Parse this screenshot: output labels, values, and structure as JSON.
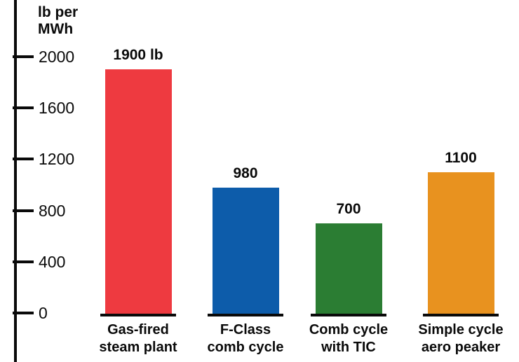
{
  "chart_data": {
    "type": "bar",
    "title": "",
    "ylabel": "lb per MWh",
    "ylabel_lines": [
      "lb per",
      "MWh"
    ],
    "categories": [
      "Gas-fired steam plant",
      "F-Class comb cycle",
      "Comb cycle with TIC",
      "Simple cycle aero peaker"
    ],
    "category_lines": [
      [
        "Gas-fired",
        "steam plant"
      ],
      [
        "F-Class",
        "comb cycle"
      ],
      [
        "Comb cycle",
        "with TIC"
      ],
      [
        "Simple cycle",
        "aero peaker"
      ]
    ],
    "values": [
      1900,
      980,
      700,
      1100
    ],
    "value_labels": [
      "1900 lb",
      "980",
      "700",
      "1100"
    ],
    "bar_colors": [
      "#ee3a40",
      "#0d5caa",
      "#2b7d33",
      "#e8921f"
    ],
    "yticks": [
      0,
      400,
      800,
      1200,
      1600,
      2000
    ],
    "ylim": [
      0,
      2000
    ],
    "xlabel": "",
    "grid": false,
    "legend": "none",
    "axis_color": "#0a0a0a",
    "background_color": "#ffffff"
  }
}
